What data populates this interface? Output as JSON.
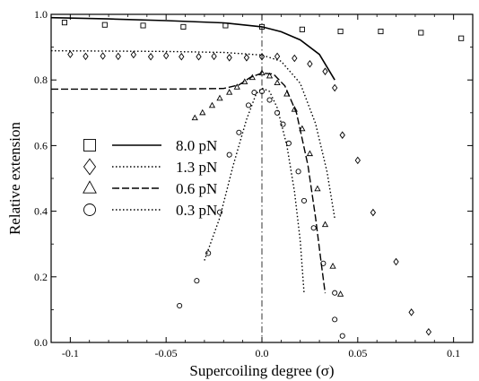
{
  "chart_data": {
    "type": "scatter",
    "xlabel": "Supercoiling degree (σ)",
    "ylabel": "Relative extension",
    "xlim": [
      -0.11,
      0.11
    ],
    "ylim": [
      0.0,
      1.0
    ],
    "x_ticks": [
      -0.1,
      -0.05,
      0.0,
      0.05,
      0.1
    ],
    "x_tick_labels": [
      "-0.1",
      "-0.05",
      "0.0",
      "0.05",
      "0.1"
    ],
    "y_ticks": [
      0.0,
      0.2,
      0.4,
      0.6,
      0.8,
      1.0
    ],
    "y_tick_labels": [
      "0.0",
      "0.2",
      "0.4",
      "0.6",
      "0.8",
      "1.0"
    ],
    "grid": false,
    "legend_position": "left",
    "reference_line_x": 0.0,
    "series": [
      {
        "name": "8.0 pN",
        "marker": "square",
        "line_style": "solid",
        "points": [
          [
            -0.103,
            0.975
          ],
          [
            -0.082,
            0.968
          ],
          [
            -0.062,
            0.966
          ],
          [
            -0.041,
            0.962
          ],
          [
            -0.019,
            0.966
          ],
          [
            0.0,
            0.962
          ],
          [
            0.021,
            0.954
          ],
          [
            0.041,
            0.948
          ],
          [
            0.062,
            0.948
          ],
          [
            0.083,
            0.944
          ],
          [
            0.104,
            0.927
          ]
        ],
        "curve": [
          [
            -0.11,
            0.99
          ],
          [
            -0.08,
            0.986
          ],
          [
            -0.05,
            0.981
          ],
          [
            -0.02,
            0.974
          ],
          [
            0.0,
            0.962
          ],
          [
            0.01,
            0.947
          ],
          [
            0.02,
            0.922
          ],
          [
            0.03,
            0.878
          ],
          [
            0.038,
            0.8
          ]
        ]
      },
      {
        "name": "1.3 pN",
        "marker": "diamond",
        "line_style": "dotted",
        "points": [
          [
            -0.1,
            0.878
          ],
          [
            -0.092,
            0.872
          ],
          [
            -0.083,
            0.873
          ],
          [
            -0.075,
            0.872
          ],
          [
            -0.067,
            0.877
          ],
          [
            -0.058,
            0.871
          ],
          [
            -0.05,
            0.874
          ],
          [
            -0.042,
            0.871
          ],
          [
            -0.033,
            0.871
          ],
          [
            -0.025,
            0.872
          ],
          [
            -0.017,
            0.868
          ],
          [
            -0.008,
            0.868
          ],
          [
            0.0,
            0.871
          ],
          [
            0.008,
            0.872
          ],
          [
            0.017,
            0.866
          ],
          [
            0.025,
            0.849
          ],
          [
            0.033,
            0.826
          ],
          [
            0.038,
            0.776
          ],
          [
            0.042,
            0.632
          ],
          [
            0.05,
            0.555
          ],
          [
            0.058,
            0.396
          ],
          [
            0.07,
            0.246
          ],
          [
            0.078,
            0.092
          ],
          [
            0.087,
            0.032
          ]
        ],
        "curve": [
          [
            -0.11,
            0.889
          ],
          [
            -0.05,
            0.887
          ],
          [
            -0.02,
            0.884
          ],
          [
            0.0,
            0.876
          ],
          [
            0.01,
            0.857
          ],
          [
            0.02,
            0.79
          ],
          [
            0.028,
            0.667
          ],
          [
            0.034,
            0.52
          ],
          [
            0.038,
            0.378
          ]
        ]
      },
      {
        "name": "0.6 pN",
        "marker": "triangle",
        "line_style": "dashed",
        "points": [
          [
            -0.035,
            0.684
          ],
          [
            -0.031,
            0.7
          ],
          [
            -0.026,
            0.722
          ],
          [
            -0.022,
            0.744
          ],
          [
            -0.017,
            0.762
          ],
          [
            -0.013,
            0.778
          ],
          [
            -0.009,
            0.794
          ],
          [
            -0.005,
            0.807
          ],
          [
            0.0,
            0.821
          ],
          [
            0.004,
            0.812
          ],
          [
            0.008,
            0.791
          ],
          [
            0.013,
            0.757
          ],
          [
            0.017,
            0.71
          ],
          [
            0.021,
            0.651
          ],
          [
            0.025,
            0.575
          ],
          [
            0.029,
            0.468
          ],
          [
            0.033,
            0.359
          ],
          [
            0.037,
            0.232
          ],
          [
            0.041,
            0.147
          ]
        ],
        "curve": [
          [
            -0.11,
            0.772
          ],
          [
            -0.05,
            0.772
          ],
          [
            -0.02,
            0.774
          ],
          [
            -0.012,
            0.785
          ],
          [
            -0.006,
            0.808
          ],
          [
            0.0,
            0.821
          ],
          [
            0.006,
            0.818
          ],
          [
            0.012,
            0.782
          ],
          [
            0.018,
            0.7
          ],
          [
            0.024,
            0.54
          ],
          [
            0.028,
            0.38
          ],
          [
            0.031,
            0.24
          ],
          [
            0.033,
            0.15
          ]
        ]
      },
      {
        "name": "0.3 pN",
        "marker": "circle",
        "line_style": "dotted",
        "points": [
          [
            -0.043,
            0.112
          ],
          [
            -0.034,
            0.188
          ],
          [
            -0.028,
            0.272
          ],
          [
            -0.022,
            0.397
          ],
          [
            -0.017,
            0.572
          ],
          [
            -0.012,
            0.64
          ],
          [
            -0.007,
            0.723
          ],
          [
            -0.004,
            0.762
          ],
          [
            0.0,
            0.765
          ],
          [
            0.004,
            0.739
          ],
          [
            0.008,
            0.7
          ],
          [
            0.011,
            0.665
          ],
          [
            0.014,
            0.607
          ],
          [
            0.019,
            0.521
          ],
          [
            0.022,
            0.432
          ],
          [
            0.027,
            0.349
          ],
          [
            0.032,
            0.241
          ],
          [
            0.038,
            0.151
          ],
          [
            0.038,
            0.07
          ],
          [
            0.042,
            0.02
          ]
        ],
        "curve": [
          [
            -0.03,
            0.25
          ],
          [
            -0.022,
            0.38
          ],
          [
            -0.015,
            0.54
          ],
          [
            -0.008,
            0.68
          ],
          [
            -0.003,
            0.758
          ],
          [
            0.0,
            0.775
          ],
          [
            0.004,
            0.765
          ],
          [
            0.008,
            0.715
          ],
          [
            0.013,
            0.6
          ],
          [
            0.017,
            0.46
          ],
          [
            0.02,
            0.31
          ],
          [
            0.022,
            0.15
          ]
        ]
      }
    ]
  }
}
